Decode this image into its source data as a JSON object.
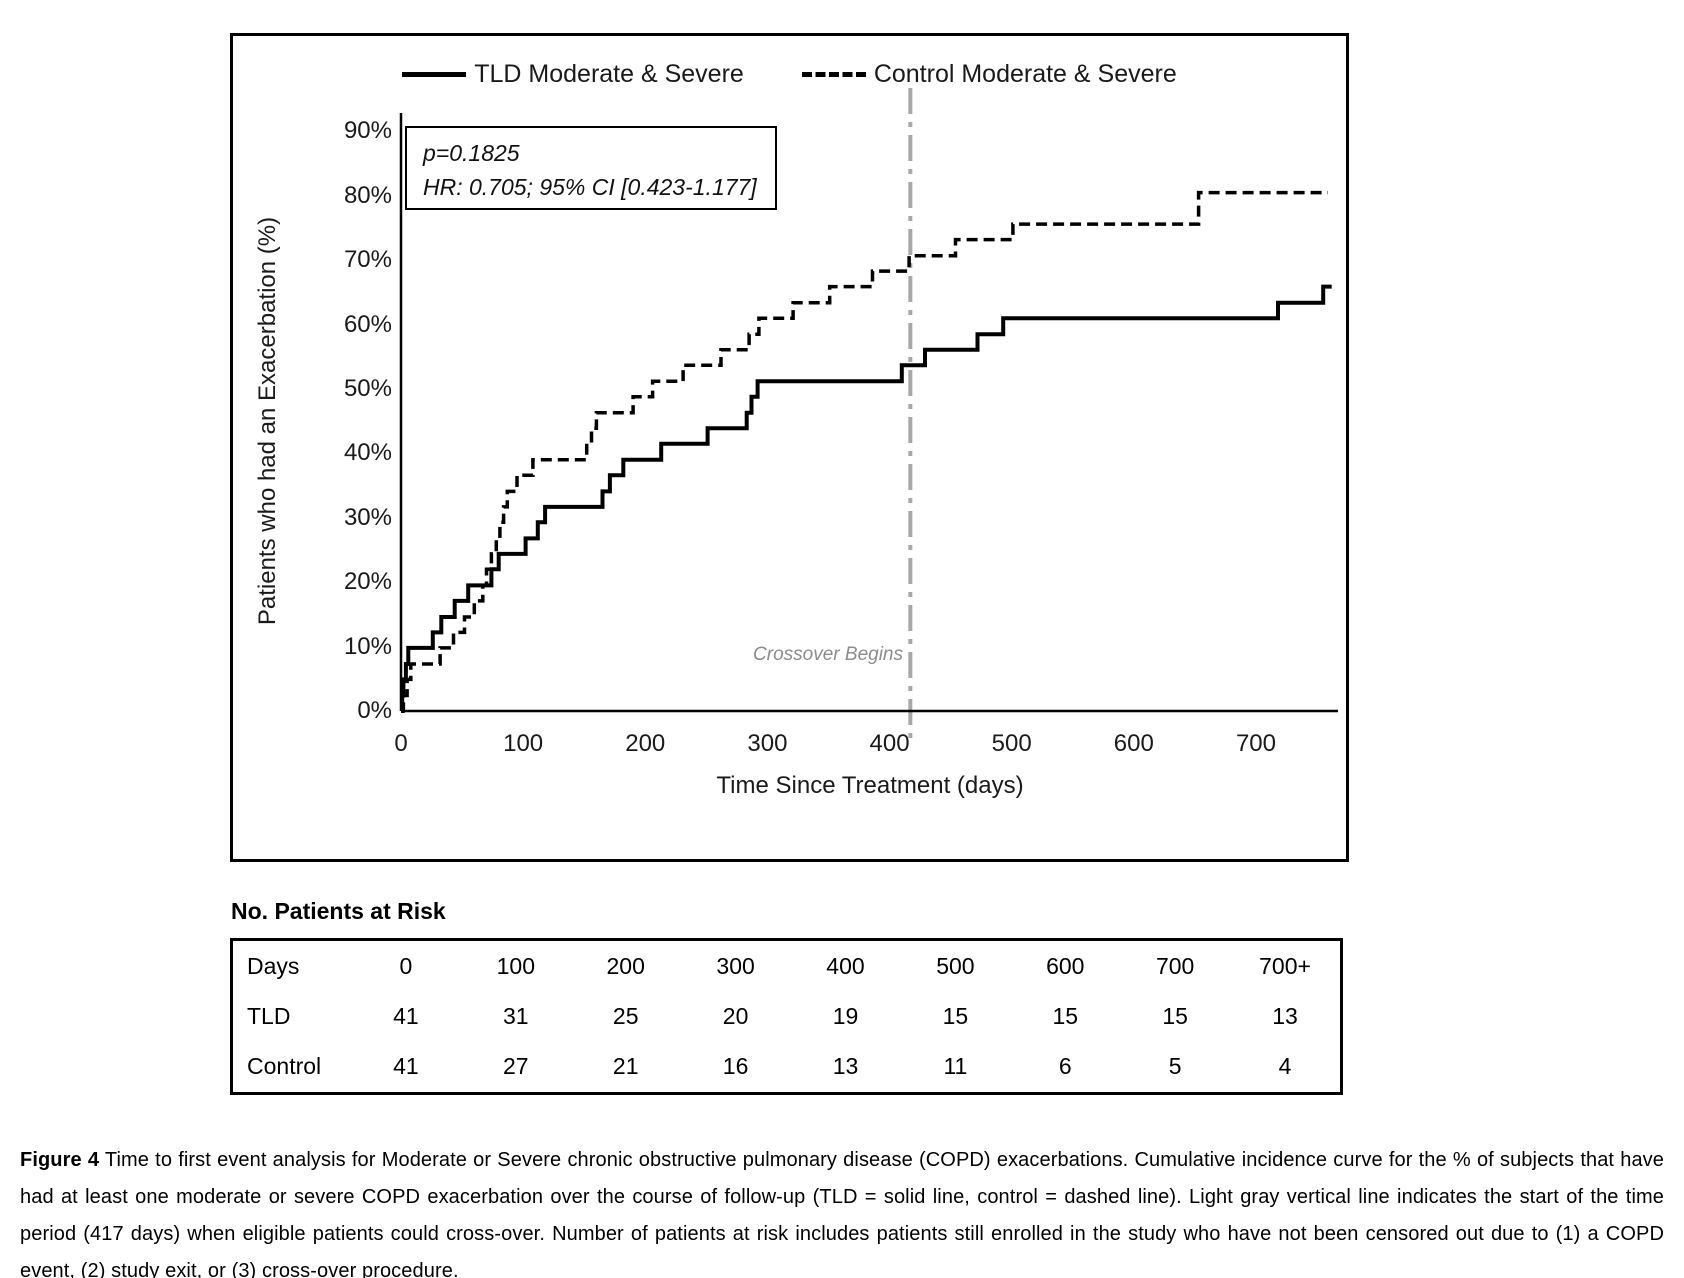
{
  "chart": {
    "legend": [
      {
        "label": "TLD Moderate & Severe",
        "style": "solid"
      },
      {
        "label": "Control Moderate & Severe",
        "style": "dashed"
      }
    ],
    "annotation": {
      "p_value": "p=0.1825",
      "hazard_ratio": "HR: 0.705; 95% CI [0.423-1.177]"
    },
    "ylabel": "Patients who had an Exacerbation (%)",
    "xlabel": "Time Since Treatment (days)",
    "crossover_label": "Crossover Begins"
  },
  "chart_data": {
    "type": "line",
    "subtype": "step-cumulative-incidence",
    "xlabel": "Time Since Treatment (days)",
    "ylabel": "Patients who had an Exacerbation (%)",
    "xlim": [
      0,
      770
    ],
    "ylim_pct": [
      0,
      90
    ],
    "x_ticks": [
      0,
      100,
      200,
      300,
      400,
      500,
      600,
      700
    ],
    "y_ticks_pct": [
      90,
      80,
      70,
      60,
      50,
      40,
      30,
      20,
      10,
      0
    ],
    "grid": false,
    "legend_position": "top-center",
    "crossover_day": 417,
    "series": [
      {
        "name": "TLD Moderate & Severe",
        "line": "solid",
        "color": "#000000",
        "end_day": 762,
        "steps": [
          [
            0,
            0
          ],
          [
            1,
            2.4
          ],
          [
            2,
            4.9
          ],
          [
            4,
            7.3
          ],
          [
            6,
            9.8
          ],
          [
            26,
            12.2
          ],
          [
            33,
            14.6
          ],
          [
            44,
            17.1
          ],
          [
            55,
            19.5
          ],
          [
            74,
            22.0
          ],
          [
            80,
            24.4
          ],
          [
            102,
            26.8
          ],
          [
            112,
            29.3
          ],
          [
            118,
            31.7
          ],
          [
            165,
            34.1
          ],
          [
            171,
            36.6
          ],
          [
            182,
            39.0
          ],
          [
            213,
            41.5
          ],
          [
            251,
            43.9
          ],
          [
            283,
            46.3
          ],
          [
            287,
            48.8
          ],
          [
            292,
            51.2
          ],
          [
            410,
            53.7
          ],
          [
            429,
            56.1
          ],
          [
            472,
            58.5
          ],
          [
            493,
            61.0
          ],
          [
            718,
            63.4
          ],
          [
            755,
            65.9
          ]
        ]
      },
      {
        "name": "Control Moderate & Severe",
        "line": "dashed",
        "color": "#000000",
        "end_day": 759,
        "steps": [
          [
            0,
            0
          ],
          [
            2,
            2.4
          ],
          [
            5,
            4.9
          ],
          [
            8,
            7.3
          ],
          [
            32,
            9.8
          ],
          [
            43,
            12.2
          ],
          [
            52,
            14.6
          ],
          [
            60,
            17.1
          ],
          [
            67,
            19.5
          ],
          [
            70,
            22.0
          ],
          [
            74,
            24.4
          ],
          [
            78,
            26.8
          ],
          [
            81,
            29.3
          ],
          [
            84,
            31.7
          ],
          [
            87,
            34.1
          ],
          [
            95,
            36.6
          ],
          [
            108,
            39.0
          ],
          [
            152,
            41.5
          ],
          [
            156,
            43.9
          ],
          [
            160,
            46.3
          ],
          [
            190,
            48.8
          ],
          [
            206,
            51.2
          ],
          [
            231,
            53.7
          ],
          [
            262,
            56.1
          ],
          [
            285,
            58.5
          ],
          [
            293,
            61.0
          ],
          [
            321,
            63.4
          ],
          [
            351,
            65.9
          ],
          [
            386,
            68.3
          ],
          [
            416,
            70.7
          ],
          [
            454,
            73.2
          ],
          [
            501,
            75.6
          ],
          [
            653,
            80.5
          ]
        ]
      }
    ],
    "annotations": [
      "p=0.1825",
      "HR: 0.705; 95% CI [0.423-1.177]",
      "Crossover Begins"
    ]
  },
  "risk_table": {
    "heading": "No. Patients at Risk",
    "rows": [
      {
        "label": "Days",
        "values": [
          "0",
          "100",
          "200",
          "300",
          "400",
          "500",
          "600",
          "700",
          "700+"
        ]
      },
      {
        "label": "TLD",
        "values": [
          "41",
          "31",
          "25",
          "20",
          "19",
          "15",
          "15",
          "15",
          "13"
        ]
      },
      {
        "label": "Control",
        "values": [
          "41",
          "27",
          "21",
          "16",
          "13",
          "11",
          "6",
          "5",
          "4"
        ]
      }
    ]
  },
  "caption": {
    "figure_label": "Figure 4",
    "text": " Time to first event analysis for Moderate or Severe chronic obstructive pulmonary disease (COPD) exacerbations. Cumulative incidence curve for the % of subjects that have had at least one moderate or severe COPD exacerbation over the course of follow-up (TLD = solid line, control = dashed line). Light gray vertical line indicates the start of the time period (417 days) when eligible patients could cross-over. Number of patients at risk includes patients still enrolled in the study who have not been censored out due to (1) a COPD event, (2) study exit, or (3) cross-over procedure."
  },
  "colors": {
    "curve": "#000000",
    "crossover_line": "#a8a8a8",
    "crossover_text": "#8c8c8c",
    "axis": "#000000"
  }
}
